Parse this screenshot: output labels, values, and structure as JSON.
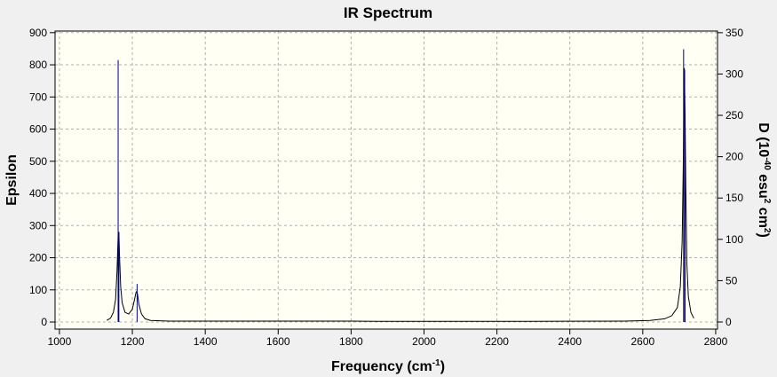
{
  "chart_data": {
    "type": "line",
    "title": "IR Spectrum",
    "x_label": [
      "Frequency (cm",
      "-1",
      ")"
    ],
    "y_label": "Epsilon",
    "y2_label": [
      "D (10",
      "-40",
      " esu",
      "2",
      " cm",
      "2",
      ")"
    ],
    "xlim": [
      988,
      2805
    ],
    "ylim": [
      -22,
      905
    ],
    "y2lim": [
      -8.6,
      352
    ],
    "xticks": [
      1000,
      1200,
      1400,
      1600,
      1800,
      2000,
      2200,
      2400,
      2600,
      2800
    ],
    "yticks": [
      0,
      100,
      200,
      300,
      400,
      500,
      600,
      700,
      800,
      900
    ],
    "y2ticks": [
      0,
      50,
      100,
      150,
      200,
      250,
      300,
      350
    ],
    "grid": true,
    "series": [
      {
        "type": "line",
        "color": "#000000",
        "x": [
          1130,
          1140,
          1148,
          1154,
          1158,
          1161,
          1163,
          1165,
          1168,
          1172,
          1180,
          1190,
          1200,
          1206,
          1210,
          1212,
          1214,
          1218,
          1225,
          1235,
          1250,
          1300,
          1500,
          1800,
          1870,
          2000,
          2300,
          2550,
          2620,
          2660,
          2680,
          2695,
          2703,
          2708,
          2711,
          2713,
          2714,
          2716,
          2718,
          2721,
          2725,
          2732,
          2740
        ],
        "values": [
          5,
          12,
          30,
          70,
          160,
          270,
          280,
          200,
          110,
          60,
          30,
          25,
          40,
          70,
          92,
          95,
          88,
          55,
          25,
          10,
          5,
          3,
          3,
          3,
          2,
          2,
          2,
          3,
          5,
          10,
          20,
          45,
          110,
          250,
          480,
          700,
          790,
          650,
          420,
          180,
          80,
          30,
          12
        ]
      },
      {
        "type": "stick",
        "axis": "y2",
        "color": "#00008b",
        "x": [
          1161,
          1163,
          1213,
          2712,
          2715,
          2716
        ],
        "values": [
          317,
          108,
          46,
          330,
          305,
          190
        ]
      }
    ]
  }
}
